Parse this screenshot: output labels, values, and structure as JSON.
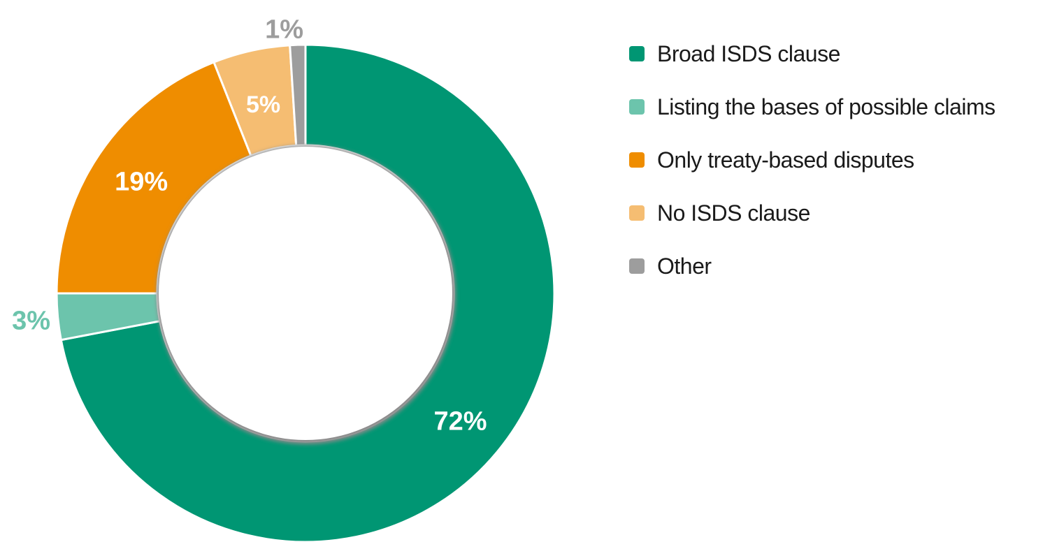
{
  "chart_data": {
    "type": "pie",
    "style": "donut",
    "title": "",
    "categories": [
      "Broad ISDS clause",
      "Listing the bases of possible claims",
      "Only treaty-based disputes",
      "No ISDS clause",
      "Other"
    ],
    "values": [
      72,
      3,
      19,
      5,
      1
    ],
    "labels": [
      "72%",
      "3%",
      "19%",
      "5%",
      "1%"
    ],
    "colors": [
      "#009673",
      "#6cc4ac",
      "#ef8d00",
      "#f5bd72",
      "#9d9d9d"
    ],
    "label_colors": [
      "#ffffff",
      "#6cc4ac",
      "#ffffff",
      "#ffffff",
      "#9d9d9d"
    ],
    "legend_position": "right"
  }
}
